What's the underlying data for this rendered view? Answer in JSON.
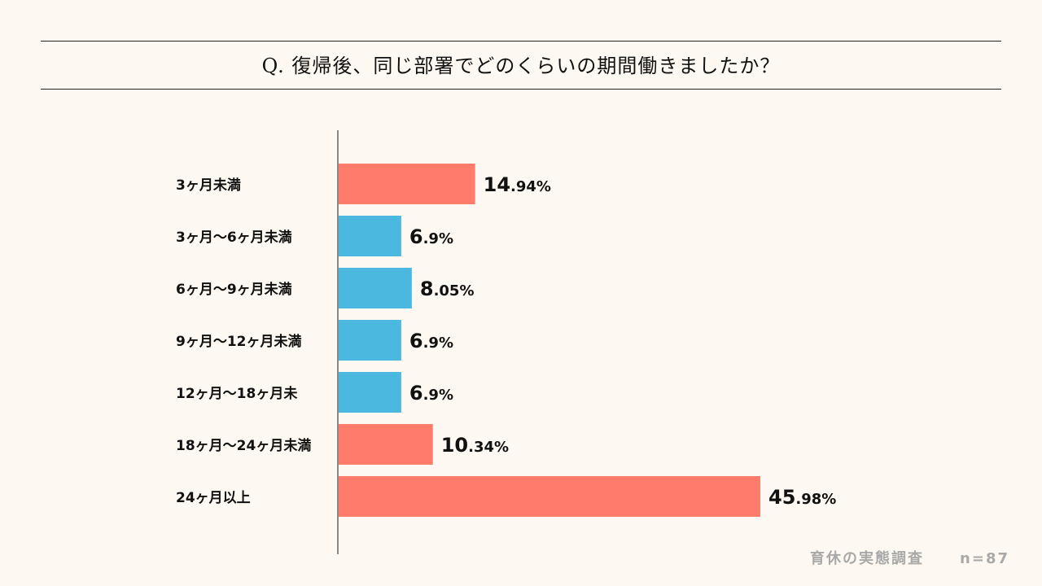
{
  "chart_data": {
    "type": "bar",
    "orientation": "horizontal",
    "title": "Q. 復帰後、同じ部署でどのくらいの期間働きましたか？",
    "categories": [
      "3ヶ月未満",
      "3ヶ月〜6ヶ月未満",
      "6ヶ月〜9ヶ月未満",
      "9ヶ月〜12ヶ月未満",
      "12ヶ月〜18ヶ月未",
      "18ヶ月〜24ヶ月未満",
      "24ヶ月以上"
    ],
    "values": [
      14.94,
      6.9,
      8.05,
      6.9,
      6.9,
      10.34,
      45.98
    ],
    "labels": [
      {
        "int": "14",
        "dec": ".94%"
      },
      {
        "int": "6",
        "dec": ".9%"
      },
      {
        "int": "8",
        "dec": ".05%"
      },
      {
        "int": "6",
        "dec": ".9%"
      },
      {
        "int": "6",
        "dec": ".9%"
      },
      {
        "int": "10",
        "dec": ".34%"
      },
      {
        "int": "45",
        "dec": ".98%"
      }
    ],
    "bar_colors": [
      "#ff7b6b",
      "#4bb9df",
      "#4bb9df",
      "#4bb9df",
      "#4bb9df",
      "#ff7b6b",
      "#ff7b6b"
    ],
    "xlim": [
      0,
      46
    ]
  },
  "footer": {
    "source": "育休の実態調査",
    "sample": "n=87"
  }
}
